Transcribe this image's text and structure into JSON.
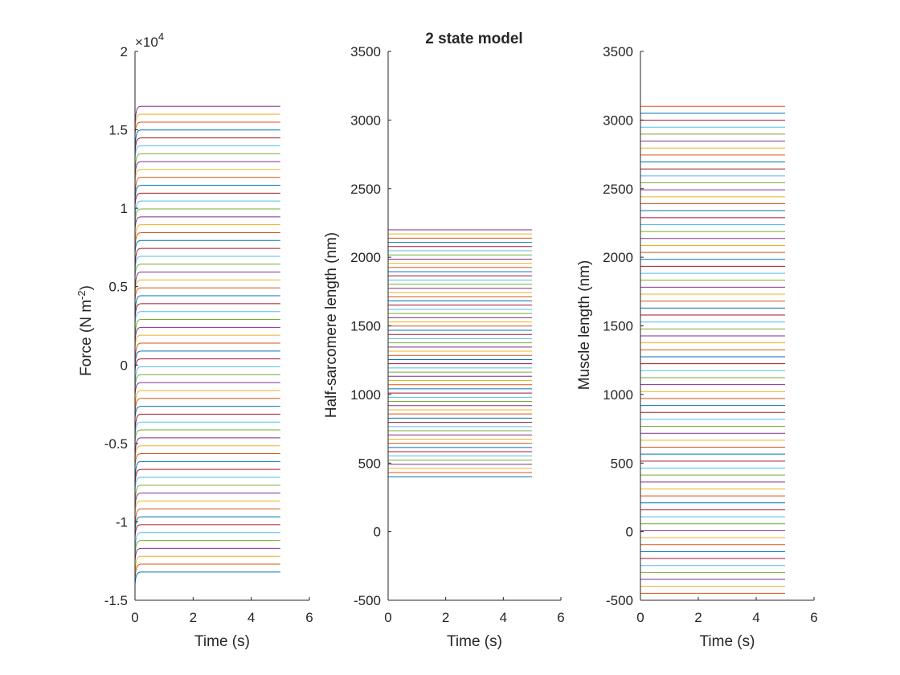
{
  "figure": {
    "title": "2 state model"
  },
  "colors": [
    "#0072BD",
    "#D95319",
    "#EDB120",
    "#7E2F8E",
    "#77AC30",
    "#4DBEEE",
    "#A2142F"
  ],
  "chart_data": [
    {
      "type": "line",
      "xlabel": "Time (s)",
      "ylabel_main": "Force (N m",
      "ylabel_sup": "-2",
      "ylabel_tail": ")",
      "exponent_base": "×10",
      "exponent_power": "4",
      "xlim": [
        0,
        6
      ],
      "ylim": [
        -1.5,
        2
      ],
      "xticks": [
        0,
        2,
        4,
        6
      ],
      "yticks": [
        -1.5,
        -1,
        -0.5,
        0,
        0.5,
        1,
        1.5,
        2
      ],
      "ytick_labels": [
        "-1.5",
        "-1",
        "-0.5",
        "0",
        "0.5",
        "1",
        "1.5",
        "2"
      ],
      "series_count": 60,
      "final_value_range": [
        -1.32,
        1.65
      ],
      "transient": "rises from below to a plateau within ~0.1 s",
      "time_range": [
        0,
        5
      ]
    },
    {
      "type": "line",
      "xlabel": "Time (s)",
      "ylabel": "Half-sarcomere length (nm)",
      "xlim": [
        0,
        6
      ],
      "ylim": [
        -500,
        3500
      ],
      "xticks": [
        0,
        2,
        4,
        6
      ],
      "yticks": [
        -500,
        0,
        500,
        1000,
        1500,
        2000,
        2500,
        3000,
        3500
      ],
      "ytick_labels": [
        "-500",
        "0",
        "500",
        "1000",
        "1500",
        "2000",
        "2500",
        "3000",
        "3500"
      ],
      "series_count": 60,
      "value_range": [
        400,
        2200
      ],
      "time_range": [
        0,
        5
      ]
    },
    {
      "type": "line",
      "xlabel": "Time (s)",
      "ylabel": "Muscle length (nm)",
      "xlim": [
        0,
        6
      ],
      "ylim": [
        -500,
        3500
      ],
      "xticks": [
        0,
        2,
        4,
        6
      ],
      "yticks": [
        -500,
        0,
        500,
        1000,
        1500,
        2000,
        2500,
        3000,
        3500
      ],
      "ytick_labels": [
        "-500",
        "0",
        "500",
        "1000",
        "1500",
        "2000",
        "2500",
        "3000",
        "3500"
      ],
      "series_count": 72,
      "value_range": [
        -500,
        3100
      ],
      "time_range": [
        0,
        5
      ]
    }
  ]
}
